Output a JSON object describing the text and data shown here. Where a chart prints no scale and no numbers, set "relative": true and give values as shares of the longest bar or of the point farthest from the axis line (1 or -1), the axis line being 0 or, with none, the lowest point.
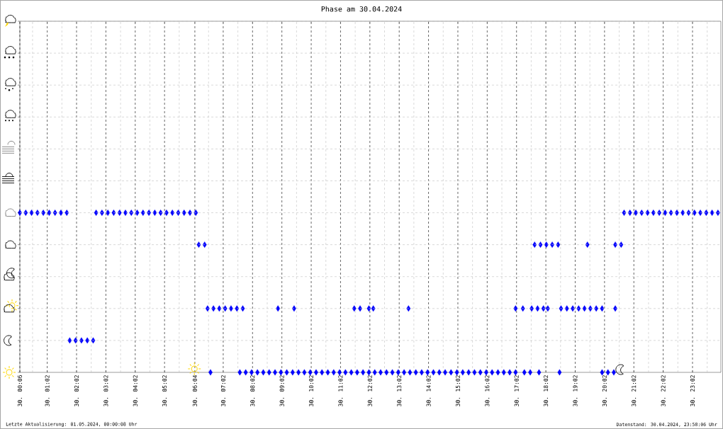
{
  "chart_data": {
    "type": "scatter",
    "title": "Phase am 30.04.2024",
    "annotations": [
      "Letzte Aktualisierung: 01.05.2024, 00:00:08 Uhr",
      "Datenstand: 30.04.2024, 23:58:06 Uhr"
    ],
    "relative": true,
    "color": "#0000ff",
    "marker": "diamond",
    "grid": "x",
    "xlim": [
      "2024-04-30T00:06",
      "2024-05-01T00:00"
    ],
    "xticks": [
      {
        "value": "2024-04-30T00:06",
        "label": "30. 00:06"
      },
      {
        "value": "2024-04-30T00:32",
        "label": null
      },
      {
        "value": "2024-04-30T01:02",
        "label": "30. 01:02"
      },
      {
        "value": "2024-04-30T01:32",
        "label": null
      },
      {
        "value": "2024-04-30T02:02",
        "label": "30. 02:02"
      },
      {
        "value": "2024-04-30T02:32",
        "label": null
      },
      {
        "value": "2024-04-30T03:02",
        "label": "30. 03:02"
      },
      {
        "value": "2024-04-30T03:32",
        "label": null
      },
      {
        "value": "2024-04-30T04:02",
        "label": "30. 04:02"
      },
      {
        "value": "2024-04-30T04:32",
        "label": null
      },
      {
        "value": "2024-04-30T05:02",
        "label": "30. 05:02"
      },
      {
        "value": "2024-04-30T05:32",
        "label": null
      },
      {
        "value": "2024-04-30T06:04",
        "label": "30. 06:04"
      },
      {
        "value": "2024-04-30T06:32",
        "label": null
      },
      {
        "value": "2024-04-30T07:02",
        "label": "30. 07:02"
      },
      {
        "value": "2024-04-30T07:32",
        "label": null
      },
      {
        "value": "2024-04-30T08:02",
        "label": "30. 08:02"
      },
      {
        "value": "2024-04-30T08:32",
        "label": null
      },
      {
        "value": "2024-04-30T09:02",
        "label": "30. 09:02"
      },
      {
        "value": "2024-04-30T09:32",
        "label": null
      },
      {
        "value": "2024-04-30T10:02",
        "label": "30. 10:02"
      },
      {
        "value": "2024-04-30T10:32",
        "label": null
      },
      {
        "value": "2024-04-30T11:02",
        "label": "30. 11:02"
      },
      {
        "value": "2024-04-30T11:32",
        "label": null
      },
      {
        "value": "2024-04-30T12:02",
        "label": "30. 12:02"
      },
      {
        "value": "2024-04-30T12:32",
        "label": null
      },
      {
        "value": "2024-04-30T13:02",
        "label": "30. 13:02"
      },
      {
        "value": "2024-04-30T13:32",
        "label": null
      },
      {
        "value": "2024-04-30T14:02",
        "label": "30. 14:02"
      },
      {
        "value": "2024-04-30T14:32",
        "label": null
      },
      {
        "value": "2024-04-30T15:02",
        "label": "30. 15:02"
      },
      {
        "value": "2024-04-30T15:32",
        "label": null
      },
      {
        "value": "2024-04-30T16:02",
        "label": "30. 16:02"
      },
      {
        "value": "2024-04-30T16:32",
        "label": null
      },
      {
        "value": "2024-04-30T17:02",
        "label": "30. 17:02"
      },
      {
        "value": "2024-04-30T17:32",
        "label": null
      },
      {
        "value": "2024-04-30T18:02",
        "label": "30. 18:02"
      },
      {
        "value": "2024-04-30T18:32",
        "label": null
      },
      {
        "value": "2024-04-30T19:02",
        "label": "30. 19:02"
      },
      {
        "value": "2024-04-30T19:32",
        "label": null
      },
      {
        "value": "2024-04-30T20:02",
        "label": "30. 20:02"
      },
      {
        "value": "2024-04-30T20:32",
        "label": null
      },
      {
        "value": "2024-04-30T21:02",
        "label": "30. 21:02"
      },
      {
        "value": "2024-04-30T21:32",
        "label": null
      },
      {
        "value": "2024-04-30T22:02",
        "label": "30. 22:02"
      },
      {
        "value": "2024-04-30T22:32",
        "label": null
      },
      {
        "value": "2024-04-30T23:02",
        "label": "30. 23:02"
      },
      {
        "value": "2024-04-30T23:32",
        "label": null
      }
    ],
    "x": [
      "2024-04-30T00:06",
      "2024-04-30T00:18",
      "2024-04-30T00:30",
      "2024-04-30T00:42",
      "2024-04-30T00:54",
      "2024-04-30T01:06",
      "2024-04-30T01:18",
      "2024-04-30T01:30",
      "2024-04-30T01:42",
      "2024-04-30T01:48",
      "2024-04-30T02:00",
      "2024-04-30T02:12",
      "2024-04-30T02:24",
      "2024-04-30T02:36",
      "2024-04-30T02:42",
      "2024-04-30T02:54",
      "2024-04-30T03:06",
      "2024-04-30T03:18",
      "2024-04-30T03:30",
      "2024-04-30T03:42",
      "2024-04-30T03:54",
      "2024-04-30T04:06",
      "2024-04-30T04:18",
      "2024-04-30T04:30",
      "2024-04-30T04:42",
      "2024-04-30T04:54",
      "2024-04-30T05:06",
      "2024-04-30T05:18",
      "2024-04-30T05:30",
      "2024-04-30T05:42",
      "2024-04-30T05:54",
      "2024-04-30T06:06",
      "2024-04-30T06:12",
      "2024-04-30T06:24",
      "2024-04-30T06:30",
      "2024-04-30T06:36",
      "2024-04-30T06:42",
      "2024-04-30T06:54",
      "2024-04-30T07:06",
      "2024-04-30T07:18",
      "2024-04-30T07:30",
      "2024-04-30T07:36",
      "2024-04-30T07:42",
      "2024-04-30T07:48",
      "2024-04-30T08:00",
      "2024-04-30T08:12",
      "2024-04-30T08:24",
      "2024-04-30T08:36",
      "2024-04-30T08:48",
      "2024-04-30T08:54",
      "2024-04-30T09:00",
      "2024-04-30T09:12",
      "2024-04-30T09:24",
      "2024-04-30T09:27",
      "2024-04-30T09:36",
      "2024-04-30T09:48",
      "2024-04-30T10:00",
      "2024-04-30T10:12",
      "2024-04-30T10:24",
      "2024-04-30T10:36",
      "2024-04-30T10:48",
      "2024-04-30T11:00",
      "2024-04-30T11:12",
      "2024-04-30T11:24",
      "2024-04-30T11:30",
      "2024-04-30T11:36",
      "2024-04-30T11:42",
      "2024-04-30T11:48",
      "2024-04-30T12:00",
      "2024-04-30T12:00",
      "2024-04-30T12:09",
      "2024-04-30T12:12",
      "2024-04-30T12:24",
      "2024-04-30T12:36",
      "2024-04-30T12:48",
      "2024-04-30T13:00",
      "2024-04-30T13:12",
      "2024-04-30T13:21",
      "2024-04-30T13:24",
      "2024-04-30T13:36",
      "2024-04-30T13:48",
      "2024-04-30T14:00",
      "2024-04-30T14:12",
      "2024-04-30T14:24",
      "2024-04-30T14:36",
      "2024-04-30T14:48",
      "2024-04-30T15:00",
      "2024-04-30T15:12",
      "2024-04-30T15:24",
      "2024-04-30T15:36",
      "2024-04-30T15:48",
      "2024-04-30T16:00",
      "2024-04-30T16:12",
      "2024-04-30T16:24",
      "2024-04-30T16:36",
      "2024-04-30T16:48",
      "2024-04-30T17:00",
      "2024-04-30T17:00",
      "2024-04-30T17:15",
      "2024-04-30T17:18",
      "2024-04-30T17:30",
      "2024-04-30T17:33",
      "2024-04-30T17:39",
      "2024-04-30T17:45",
      "2024-04-30T17:48",
      "2024-04-30T17:51",
      "2024-04-30T17:57",
      "2024-04-30T18:03",
      "2024-04-30T18:06",
      "2024-04-30T18:15",
      "2024-04-30T18:27",
      "2024-04-30T18:30",
      "2024-04-30T18:33",
      "2024-04-30T18:45",
      "2024-04-30T18:57",
      "2024-04-30T19:09",
      "2024-04-30T19:21",
      "2024-04-30T19:27",
      "2024-04-30T19:33",
      "2024-04-30T19:45",
      "2024-04-30T19:57",
      "2024-04-30T19:57",
      "2024-04-30T20:09",
      "2024-04-30T20:21",
      "2024-04-30T20:24",
      "2024-04-30T20:24",
      "2024-04-30T20:36",
      "2024-04-30T20:42",
      "2024-04-30T20:54",
      "2024-04-30T21:06",
      "2024-04-30T21:18",
      "2024-04-30T21:30",
      "2024-04-30T21:42",
      "2024-04-30T21:54",
      "2024-04-30T22:06",
      "2024-04-30T22:18",
      "2024-04-30T22:30",
      "2024-04-30T22:42",
      "2024-04-30T22:54",
      "2024-04-30T23:06",
      "2024-04-30T23:18",
      "2024-04-30T23:30",
      "2024-04-30T23:42",
      "2024-04-30T23:54"
    ],
    "values": [
      1,
      1,
      1,
      1,
      1,
      1,
      1,
      1,
      1,
      0.2,
      0.2,
      0.2,
      0.2,
      0.2,
      1,
      1,
      1,
      1,
      1,
      1,
      1,
      1,
      1,
      1,
      1,
      1,
      1,
      1,
      1,
      1,
      1,
      1,
      0.8,
      0.8,
      0.4,
      0,
      0.4,
      0.4,
      0.4,
      0.4,
      0.4,
      0,
      0.4,
      0,
      0,
      0,
      0,
      0,
      0,
      0.4,
      0,
      0,
      0,
      0.4,
      0,
      0,
      0,
      0,
      0,
      0,
      0,
      0,
      0,
      0,
      0.4,
      0,
      0.4,
      0,
      0,
      0.4,
      0.4,
      0,
      0,
      0,
      0,
      0,
      0,
      0.4,
      0,
      0,
      0,
      0,
      0,
      0,
      0,
      0,
      0,
      0,
      0,
      0,
      0,
      0,
      0,
      0,
      0,
      0,
      0,
      0.4,
      0.4,
      0,
      0,
      0.4,
      0.8,
      0.4,
      0,
      0.8,
      0.4,
      0.8,
      0.4,
      0.8,
      0.8,
      0,
      0.4,
      0.4,
      0.4,
      0.4,
      0.4,
      0.8,
      0.4,
      0.4,
      0.4,
      0,
      0,
      0,
      0.4,
      0.8,
      0.8,
      1,
      1,
      1,
      1,
      1,
      1,
      1,
      1,
      1,
      1,
      1,
      1,
      1,
      1,
      1,
      1,
      1
    ]
  }
}
